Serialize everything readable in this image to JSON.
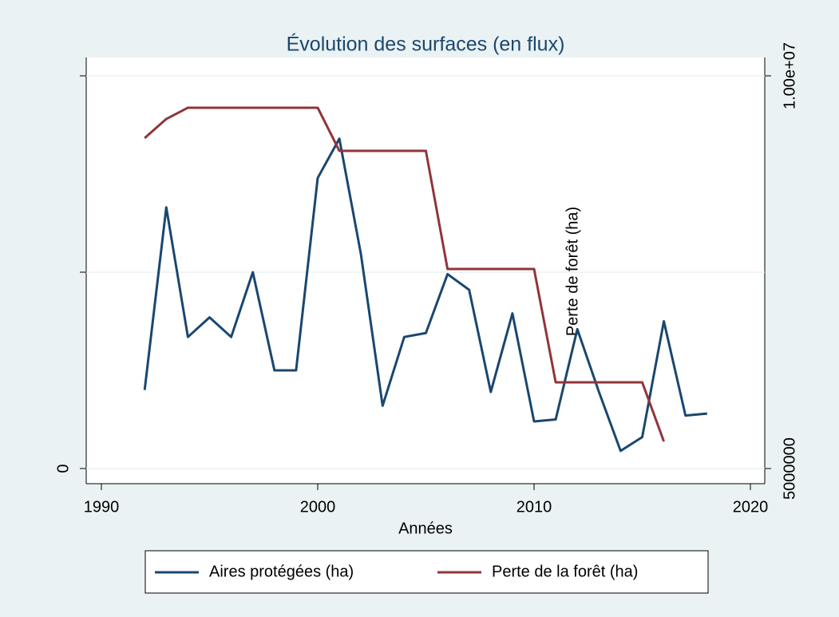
{
  "chart_data": {
    "type": "line",
    "title": "Évolution des surfaces (en flux)",
    "xlabel": "Années",
    "y2label": "Perte de forêt (ha)",
    "x": [
      1992,
      1993,
      1994,
      1995,
      1996,
      1997,
      1998,
      1999,
      2000,
      2001,
      2002,
      2003,
      2004,
      2005,
      2006,
      2007,
      2008,
      2009,
      2010,
      2011,
      2012,
      2013,
      2014,
      2015,
      2016,
      2017,
      2018
    ],
    "series": [
      {
        "name": "Aires protégées (ha)",
        "color": "#1a476f",
        "values": [
          20000,
          66500,
          33500,
          38500,
          33500,
          50000,
          25000,
          25000,
          74000,
          84000,
          54500,
          16000,
          33500,
          34500,
          49500,
          45500,
          19500,
          39500,
          12000,
          12500,
          35500,
          19500,
          4500,
          8000,
          37500,
          13500,
          14000
        ]
      },
      {
        "name": "Perte de la forêt (ha)",
        "color": "#90353b",
        "axis": "y2",
        "values": [
          9207000,
          9451000,
          9594000,
          9594000,
          9594000,
          9594000,
          9594000,
          9594000,
          9594000,
          9045000,
          9045000,
          9045000,
          9045000,
          9045000,
          7541000,
          7541000,
          7541000,
          7541000,
          7541000,
          6098000,
          6098000,
          6098000,
          6098000,
          6098000,
          5346000,
          null,
          null
        ]
      }
    ],
    "xlim": [
      1990,
      2020
    ],
    "xticks": [
      1990,
      2000,
      2010,
      2020
    ],
    "ylim": [
      0,
      100000
    ],
    "yticks": [
      0,
      {
        "value": 50000
      },
      {
        "value": 100000
      }
    ],
    "y2lim": [
      5000000,
      10000000
    ],
    "y2ticks": [
      5000000,
      {
        "value": 10000000,
        "label": "1.00e+07"
      }
    ],
    "grid": true,
    "legend": "bottom"
  }
}
